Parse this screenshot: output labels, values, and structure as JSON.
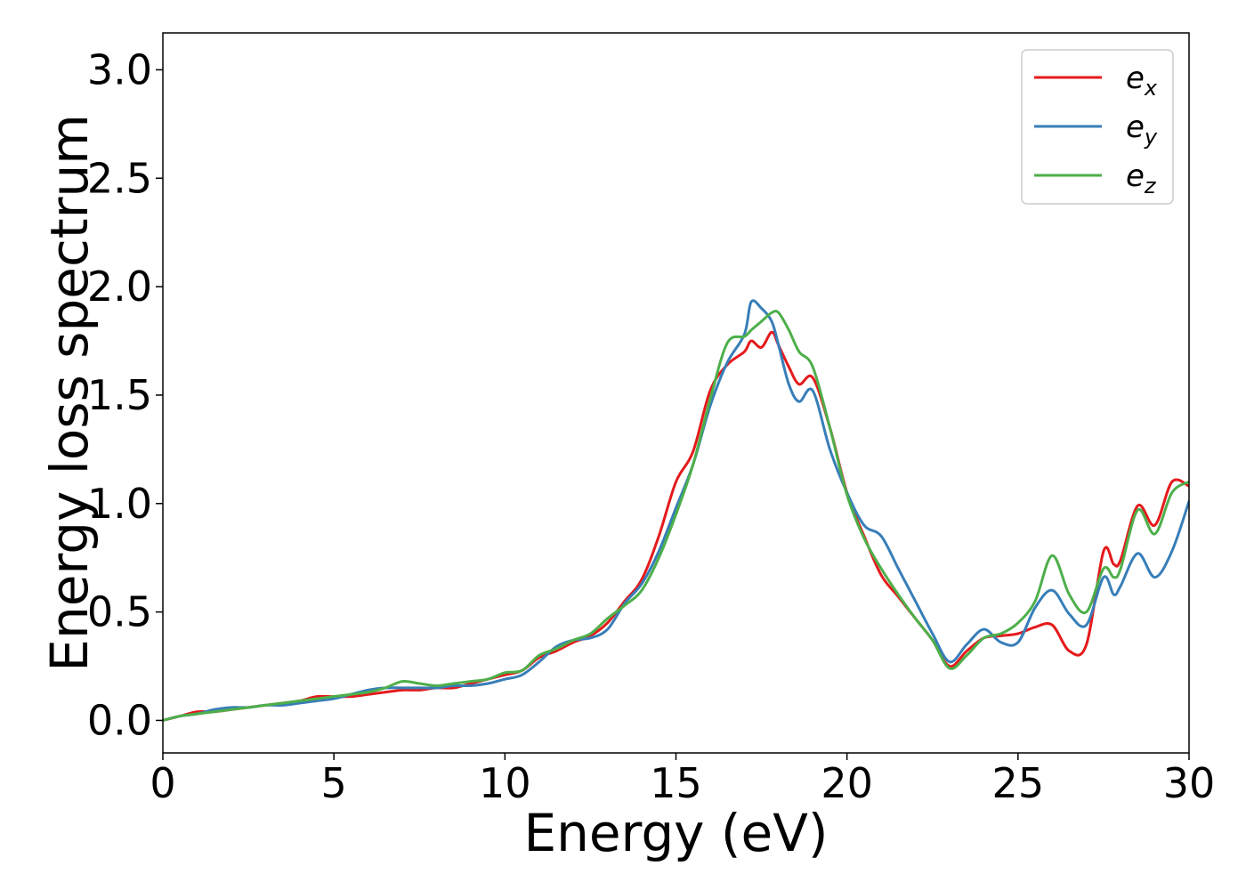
{
  "chart_data": {
    "type": "line",
    "title": "",
    "xlabel": "Energy (eV)",
    "ylabel": "Energy loss spectrum",
    "xlim": [
      0,
      30
    ],
    "ylim": [
      -0.15,
      3.17
    ],
    "xticks": [
      0,
      5,
      10,
      15,
      20,
      25,
      30
    ],
    "yticks": [
      0.0,
      0.5,
      1.0,
      1.5,
      2.0,
      2.5,
      3.0
    ],
    "xtick_labels": [
      "0",
      "5",
      "10",
      "15",
      "20",
      "25",
      "30"
    ],
    "ytick_labels": [
      "0.0",
      "0.5",
      "1.0",
      "1.5",
      "2.0",
      "2.5",
      "3.0"
    ],
    "grid": false,
    "legend_position": "top-right",
    "series": [
      {
        "name": "e_x",
        "label_base": "e",
        "label_sub": "x",
        "color": "#e41a1c",
        "x": [
          0,
          0.5,
          1,
          1.5,
          2,
          2.5,
          3,
          3.5,
          4,
          4.5,
          5,
          5.5,
          6,
          6.5,
          7,
          7.5,
          8,
          8.5,
          9,
          9.5,
          10,
          10.5,
          11,
          11.5,
          12,
          12.5,
          13,
          13.5,
          14,
          14.5,
          15,
          15.5,
          16,
          16.5,
          17,
          17.2,
          17.5,
          17.8,
          18,
          18.3,
          18.6,
          19,
          19.5,
          20,
          20.5,
          21,
          21.5,
          22,
          22.5,
          23,
          23.5,
          24,
          24.5,
          25,
          25.5,
          26,
          26.5,
          27,
          27.5,
          27.8,
          28,
          28.5,
          29,
          29.5,
          30
        ],
        "y": [
          0.0,
          0.02,
          0.04,
          0.04,
          0.05,
          0.06,
          0.07,
          0.08,
          0.09,
          0.11,
          0.11,
          0.11,
          0.12,
          0.13,
          0.14,
          0.14,
          0.15,
          0.15,
          0.17,
          0.19,
          0.21,
          0.23,
          0.29,
          0.32,
          0.36,
          0.39,
          0.45,
          0.55,
          0.65,
          0.85,
          1.1,
          1.24,
          1.52,
          1.64,
          1.7,
          1.75,
          1.72,
          1.79,
          1.73,
          1.63,
          1.55,
          1.58,
          1.35,
          1.05,
          0.85,
          0.67,
          0.57,
          0.47,
          0.37,
          0.25,
          0.32,
          0.38,
          0.39,
          0.4,
          0.43,
          0.44,
          0.32,
          0.35,
          0.78,
          0.72,
          0.74,
          0.99,
          0.9,
          1.1,
          1.08
        ]
      },
      {
        "name": "e_y",
        "label_base": "e",
        "label_sub": "y",
        "color": "#377eb8",
        "x": [
          0,
          0.5,
          1,
          1.5,
          2,
          2.5,
          3,
          3.5,
          4,
          4.5,
          5,
          5.5,
          6,
          6.5,
          7,
          7.5,
          8,
          8.5,
          9,
          9.5,
          10,
          10.5,
          11,
          11.5,
          12,
          12.5,
          13,
          13.5,
          14,
          14.5,
          15,
          15.5,
          16,
          16.5,
          17,
          17.2,
          17.5,
          17.8,
          18,
          18.3,
          18.6,
          19,
          19.5,
          20,
          20.5,
          21,
          21.5,
          22,
          22.5,
          23,
          23.5,
          24,
          24.5,
          25,
          25.5,
          26,
          26.5,
          27,
          27.5,
          27.8,
          28,
          28.5,
          29,
          29.5,
          30
        ],
        "y": [
          0.0,
          0.02,
          0.03,
          0.05,
          0.06,
          0.06,
          0.07,
          0.07,
          0.08,
          0.09,
          0.1,
          0.12,
          0.14,
          0.15,
          0.15,
          0.15,
          0.15,
          0.16,
          0.16,
          0.17,
          0.19,
          0.21,
          0.27,
          0.34,
          0.37,
          0.38,
          0.42,
          0.54,
          0.63,
          0.78,
          0.98,
          1.18,
          1.45,
          1.65,
          1.78,
          1.93,
          1.9,
          1.84,
          1.73,
          1.55,
          1.47,
          1.52,
          1.25,
          1.05,
          0.9,
          0.85,
          0.7,
          0.55,
          0.4,
          0.27,
          0.35,
          0.42,
          0.36,
          0.36,
          0.52,
          0.6,
          0.49,
          0.44,
          0.66,
          0.58,
          0.62,
          0.77,
          0.66,
          0.78,
          1.01
        ]
      },
      {
        "name": "e_z",
        "label_base": "e",
        "label_sub": "z",
        "color": "#4daf4a",
        "x": [
          0,
          0.5,
          1,
          1.5,
          2,
          2.5,
          3,
          3.5,
          4,
          4.5,
          5,
          5.5,
          6,
          6.5,
          7,
          7.5,
          8,
          8.5,
          9,
          9.5,
          10,
          10.5,
          11,
          11.5,
          12,
          12.5,
          13,
          13.5,
          14,
          14.5,
          15,
          15.5,
          16,
          16.5,
          17,
          17.2,
          17.5,
          17.8,
          18,
          18.3,
          18.6,
          19,
          19.5,
          20,
          20.5,
          21,
          21.5,
          22,
          22.5,
          23,
          23.5,
          24,
          24.5,
          25,
          25.5,
          26,
          26.5,
          27,
          27.5,
          27.8,
          28,
          28.5,
          29,
          29.5,
          30
        ],
        "y": [
          0.0,
          0.02,
          0.03,
          0.04,
          0.05,
          0.06,
          0.07,
          0.08,
          0.09,
          0.1,
          0.11,
          0.12,
          0.13,
          0.15,
          0.18,
          0.17,
          0.16,
          0.17,
          0.18,
          0.19,
          0.22,
          0.23,
          0.3,
          0.33,
          0.37,
          0.4,
          0.47,
          0.53,
          0.6,
          0.75,
          0.95,
          1.18,
          1.48,
          1.74,
          1.77,
          1.8,
          1.84,
          1.88,
          1.88,
          1.8,
          1.7,
          1.63,
          1.35,
          1.04,
          0.84,
          0.7,
          0.58,
          0.47,
          0.37,
          0.24,
          0.3,
          0.38,
          0.4,
          0.45,
          0.55,
          0.76,
          0.58,
          0.5,
          0.7,
          0.66,
          0.7,
          0.97,
          0.86,
          1.05,
          1.1
        ]
      }
    ]
  }
}
